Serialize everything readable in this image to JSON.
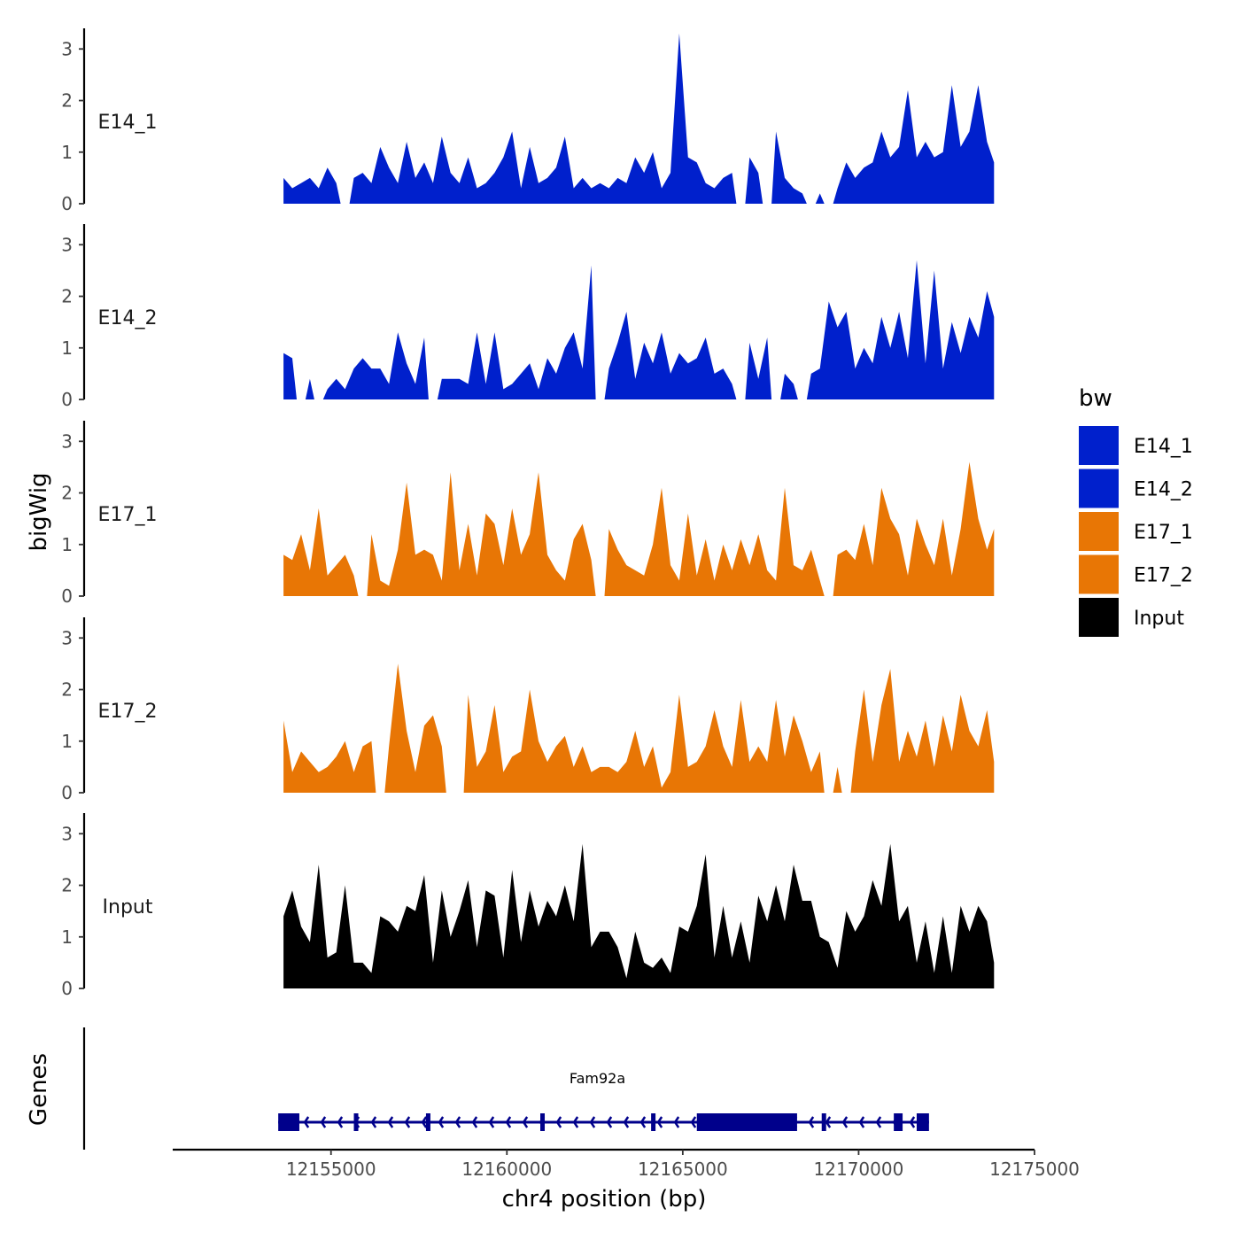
{
  "chart_data": {
    "type": "area",
    "title": "",
    "ylabel": "bigWig",
    "xlabel": "chr4 position (bp)",
    "xlim": [
      12150500,
      12175000
    ],
    "x_ticks": [
      12155000,
      12160000,
      12165000,
      12170000,
      12175000
    ],
    "x_tick_labels": [
      "12155000",
      "12160000",
      "12165000",
      "12170000",
      "12175000"
    ],
    "ylim": [
      0,
      3.4
    ],
    "y_ticks": [
      0,
      1,
      2,
      3
    ],
    "y_tick_labels": [
      "0",
      "1",
      "2",
      "3"
    ],
    "series": [
      {
        "name": "E14_1",
        "color": "#0020cc",
        "x": [
          12153650,
          12153900,
          12154150,
          12154400,
          12154650,
          12154900,
          12155150,
          12155400,
          12155650,
          12155900,
          12156150,
          12156400,
          12156650,
          12156900,
          12157150,
          12157400,
          12157650,
          12157900,
          12158150,
          12158400,
          12158650,
          12158900,
          12159150,
          12159400,
          12159650,
          12159900,
          12160150,
          12160400,
          12160650,
          12160900,
          12161150,
          12161400,
          12161650,
          12161900,
          12162150,
          12162400,
          12162650,
          12162900,
          12163150,
          12163400,
          12163650,
          12163900,
          12164150,
          12164400,
          12164650,
          12164900,
          12165150,
          12165400,
          12165650,
          12165900,
          12166150,
          12166400,
          12166650,
          12166900,
          12167150,
          12167400,
          12167650,
          12167900,
          12168150,
          12168400,
          12168650,
          12168900,
          12169150,
          12169400,
          12169650,
          12169900,
          12170150,
          12170400,
          12170650,
          12170900,
          12171150,
          12171400,
          12171650,
          12171900,
          12172150,
          12172400,
          12172650,
          12172900,
          12173150,
          12173400,
          12173650,
          12173850
        ],
        "values": [
          0.5,
          0.3,
          0.4,
          0.5,
          0.3,
          0.7,
          0.4,
          0.0,
          0.5,
          0.6,
          0.4,
          1.1,
          0.7,
          0.4,
          1.2,
          0.5,
          0.8,
          0.4,
          1.3,
          0.6,
          0.4,
          0.9,
          0.3,
          0.4,
          0.6,
          0.9,
          1.4,
          0.3,
          1.1,
          0.4,
          0.5,
          0.7,
          1.3,
          0.3,
          0.5,
          0.3,
          0.4,
          0.3,
          0.5,
          0.4,
          0.9,
          0.6,
          1.0,
          0.3,
          0.6,
          3.3,
          0.9,
          0.8,
          0.4,
          0.3,
          0.5,
          0.6,
          0.0,
          0.9,
          0.6,
          0.0,
          1.4,
          0.5,
          0.3,
          0.2,
          0.0,
          0.2,
          0.0,
          0.3,
          0.8,
          0.5,
          0.7,
          0.8,
          1.4,
          0.9,
          1.1,
          2.2,
          0.9,
          1.2,
          0.9,
          1.0,
          2.3,
          1.1,
          1.4,
          2.3,
          1.2,
          0.8
        ]
      },
      {
        "name": "E14_2",
        "color": "#0020cc",
        "x": [
          12153650,
          12153900,
          12154150,
          12154400,
          12154650,
          12154900,
          12155150,
          12155400,
          12155650,
          12155900,
          12156150,
          12156400,
          12156650,
          12156900,
          12157150,
          12157400,
          12157650,
          12157900,
          12158150,
          12158400,
          12158650,
          12158900,
          12159150,
          12159400,
          12159650,
          12159900,
          12160150,
          12160400,
          12160650,
          12160900,
          12161150,
          12161400,
          12161650,
          12161900,
          12162150,
          12162400,
          12162650,
          12162900,
          12163150,
          12163400,
          12163650,
          12163900,
          12164150,
          12164400,
          12164650,
          12164900,
          12165150,
          12165400,
          12165650,
          12165900,
          12166150,
          12166400,
          12166650,
          12166900,
          12167150,
          12167400,
          12167650,
          12167900,
          12168150,
          12168400,
          12168650,
          12168900,
          12169150,
          12169400,
          12169650,
          12169900,
          12170150,
          12170400,
          12170650,
          12170900,
          12171150,
          12171400,
          12171650,
          12171900,
          12172150,
          12172400,
          12172650,
          12172900,
          12173150,
          12173400,
          12173650,
          12173850
        ],
        "values": [
          0.9,
          0.8,
          0.0,
          0.4,
          0.0,
          0.2,
          0.4,
          0.2,
          0.6,
          0.8,
          0.6,
          0.6,
          0.3,
          1.3,
          0.7,
          0.3,
          1.2,
          0.0,
          0.4,
          0.4,
          0.4,
          0.3,
          1.3,
          0.3,
          1.3,
          0.2,
          0.3,
          0.5,
          0.7,
          0.2,
          0.8,
          0.5,
          1.0,
          1.3,
          0.6,
          2.6,
          0.0,
          0.6,
          1.1,
          1.7,
          0.4,
          1.1,
          0.7,
          1.3,
          0.5,
          0.9,
          0.7,
          0.8,
          1.2,
          0.5,
          0.6,
          0.3,
          0.0,
          1.1,
          0.4,
          1.2,
          0.0,
          0.5,
          0.3,
          0.0,
          0.5,
          0.6,
          1.9,
          1.4,
          1.7,
          0.6,
          1.0,
          0.7,
          1.6,
          1.0,
          1.7,
          0.8,
          2.7,
          0.7,
          2.5,
          0.6,
          1.5,
          0.9,
          1.6,
          1.2,
          2.1,
          1.6
        ]
      },
      {
        "name": "E17_1",
        "color": "#e87605",
        "x": [
          12153650,
          12153900,
          12154150,
          12154400,
          12154650,
          12154900,
          12155150,
          12155400,
          12155650,
          12155900,
          12156150,
          12156400,
          12156650,
          12156900,
          12157150,
          12157400,
          12157650,
          12157900,
          12158150,
          12158400,
          12158650,
          12158900,
          12159150,
          12159400,
          12159650,
          12159900,
          12160150,
          12160400,
          12160650,
          12160900,
          12161150,
          12161400,
          12161650,
          12161900,
          12162150,
          12162400,
          12162650,
          12162900,
          12163150,
          12163400,
          12163650,
          12163900,
          12164150,
          12164400,
          12164650,
          12164900,
          12165150,
          12165400,
          12165650,
          12165900,
          12166150,
          12166400,
          12166650,
          12166900,
          12167150,
          12167400,
          12167650,
          12167900,
          12168150,
          12168400,
          12168650,
          12168900,
          12169150,
          12169400,
          12169650,
          12169900,
          12170150,
          12170400,
          12170650,
          12170900,
          12171150,
          12171400,
          12171650,
          12171900,
          12172150,
          12172400,
          12172650,
          12172900,
          12173150,
          12173400,
          12173650,
          12173850
        ],
        "values": [
          0.8,
          0.7,
          1.2,
          0.5,
          1.7,
          0.4,
          0.6,
          0.8,
          0.4,
          0.0,
          1.2,
          0.3,
          0.2,
          0.9,
          2.2,
          0.8,
          0.9,
          0.8,
          0.3,
          2.4,
          0.5,
          1.4,
          0.4,
          1.6,
          1.4,
          0.6,
          1.7,
          0.8,
          1.2,
          2.4,
          0.8,
          0.5,
          0.3,
          1.1,
          1.4,
          0.7,
          0.0,
          1.3,
          0.9,
          0.6,
          0.5,
          0.4,
          1.0,
          2.1,
          0.6,
          0.3,
          1.6,
          0.4,
          1.1,
          0.3,
          1.0,
          0.5,
          1.1,
          0.6,
          1.2,
          0.5,
          0.3,
          2.1,
          0.6,
          0.5,
          0.9,
          0.3,
          0.0,
          0.8,
          0.9,
          0.7,
          1.4,
          0.6,
          2.1,
          1.5,
          1.2,
          0.4,
          1.5,
          1.0,
          0.6,
          1.5,
          0.4,
          1.3,
          2.6,
          1.5,
          0.9,
          1.3
        ]
      },
      {
        "name": "E17_2",
        "color": "#e87605",
        "x": [
          12153650,
          12153900,
          12154150,
          12154400,
          12154650,
          12154900,
          12155150,
          12155400,
          12155650,
          12155900,
          12156150,
          12156400,
          12156650,
          12156900,
          12157150,
          12157400,
          12157650,
          12157900,
          12158150,
          12158400,
          12158650,
          12158900,
          12159150,
          12159400,
          12159650,
          12159900,
          12160150,
          12160400,
          12160650,
          12160900,
          12161150,
          12161400,
          12161650,
          12161900,
          12162150,
          12162400,
          12162650,
          12162900,
          12163150,
          12163400,
          12163650,
          12163900,
          12164150,
          12164400,
          12164650,
          12164900,
          12165150,
          12165400,
          12165650,
          12165900,
          12166150,
          12166400,
          12166650,
          12166900,
          12167150,
          12167400,
          12167650,
          12167900,
          12168150,
          12168400,
          12168650,
          12168900,
          12169150,
          12169400,
          12169650,
          12169900,
          12170150,
          12170400,
          12170650,
          12170900,
          12171150,
          12171400,
          12171650,
          12171900,
          12172150,
          12172400,
          12172650,
          12172900,
          12173150,
          12173400,
          12173650,
          12173850
        ],
        "values": [
          1.4,
          0.4,
          0.8,
          0.6,
          0.4,
          0.5,
          0.7,
          1.0,
          0.4,
          0.9,
          1.0,
          0.0,
          0.9,
          2.5,
          1.2,
          0.4,
          1.3,
          1.5,
          0.9,
          0.0,
          0.0,
          1.9,
          0.5,
          0.8,
          1.7,
          0.4,
          0.7,
          0.8,
          2.0,
          1.0,
          0.6,
          0.9,
          1.1,
          0.5,
          0.9,
          0.4,
          0.5,
          0.5,
          0.4,
          0.6,
          1.2,
          0.5,
          0.9,
          0.1,
          0.4,
          1.9,
          0.5,
          0.6,
          0.9,
          1.6,
          0.9,
          0.5,
          1.8,
          0.6,
          0.9,
          0.6,
          1.8,
          0.7,
          1.5,
          1.0,
          0.4,
          0.8,
          0.0,
          0.5,
          0.0,
          0.8,
          2.0,
          0.6,
          1.7,
          2.4,
          0.6,
          1.2,
          0.7,
          1.4,
          0.5,
          1.5,
          0.8,
          1.9,
          1.2,
          0.9,
          1.6,
          0.6
        ]
      },
      {
        "name": "Input",
        "color": "#000000",
        "x": [
          12153650,
          12153900,
          12154150,
          12154400,
          12154650,
          12154900,
          12155150,
          12155400,
          12155650,
          12155900,
          12156150,
          12156400,
          12156650,
          12156900,
          12157150,
          12157400,
          12157650,
          12157900,
          12158150,
          12158400,
          12158650,
          12158900,
          12159150,
          12159400,
          12159650,
          12159900,
          12160150,
          12160400,
          12160650,
          12160900,
          12161150,
          12161400,
          12161650,
          12161900,
          12162150,
          12162400,
          12162650,
          12162900,
          12163150,
          12163400,
          12163650,
          12163900,
          12164150,
          12164400,
          12164650,
          12164900,
          12165150,
          12165400,
          12165650,
          12165900,
          12166150,
          12166400,
          12166650,
          12166900,
          12167150,
          12167400,
          12167650,
          12167900,
          12168150,
          12168400,
          12168650,
          12168900,
          12169150,
          12169400,
          12169650,
          12169900,
          12170150,
          12170400,
          12170650,
          12170900,
          12171150,
          12171400,
          12171650,
          12171900,
          12172150,
          12172400,
          12172650,
          12172900,
          12173150,
          12173400,
          12173650,
          12173850
        ],
        "values": [
          1.4,
          1.9,
          1.2,
          0.9,
          2.4,
          0.6,
          0.7,
          2.0,
          0.5,
          0.5,
          0.3,
          1.4,
          1.3,
          1.1,
          1.6,
          1.5,
          2.2,
          0.5,
          1.9,
          1.0,
          1.5,
          2.1,
          0.8,
          1.9,
          1.8,
          0.6,
          2.3,
          0.9,
          1.9,
          1.2,
          1.7,
          1.4,
          2.0,
          1.3,
          2.8,
          0.8,
          1.1,
          1.1,
          0.8,
          0.2,
          1.1,
          0.5,
          0.4,
          0.6,
          0.3,
          1.2,
          1.1,
          1.6,
          2.6,
          0.6,
          1.6,
          0.6,
          1.3,
          0.5,
          1.8,
          1.3,
          2.0,
          1.3,
          2.4,
          1.7,
          1.7,
          1.0,
          0.9,
          0.4,
          1.5,
          1.1,
          1.4,
          2.1,
          1.6,
          2.8,
          1.3,
          1.6,
          0.5,
          1.3,
          0.3,
          1.4,
          0.3,
          1.6,
          1.1,
          1.6,
          1.3,
          0.5
        ]
      }
    ],
    "legend": {
      "title": "bw",
      "position": "right",
      "entries": [
        {
          "label": "E14_1",
          "color": "#0020cc"
        },
        {
          "label": "E14_2",
          "color": "#0020cc"
        },
        {
          "label": "E17_1",
          "color": "#e87605"
        },
        {
          "label": "E17_2",
          "color": "#e87605"
        },
        {
          "label": "Input",
          "color": "#000000"
        }
      ]
    },
    "gene_track": {
      "title": "Genes",
      "color": "#00008b",
      "genes": [
        {
          "name": "Fam92a",
          "strand": "-",
          "start": 12153500,
          "end": 12172000,
          "exons": [
            [
              12153500,
              12154100
            ],
            [
              12155650,
              12155700
            ],
            [
              12157700,
              12157750
            ],
            [
              12160950,
              12161000
            ],
            [
              12164100,
              12164150
            ],
            [
              12165400,
              12168250
            ],
            [
              12168950,
              12169000
            ],
            [
              12171000,
              12171250
            ],
            [
              12171650,
              12172000
            ]
          ]
        }
      ]
    }
  }
}
